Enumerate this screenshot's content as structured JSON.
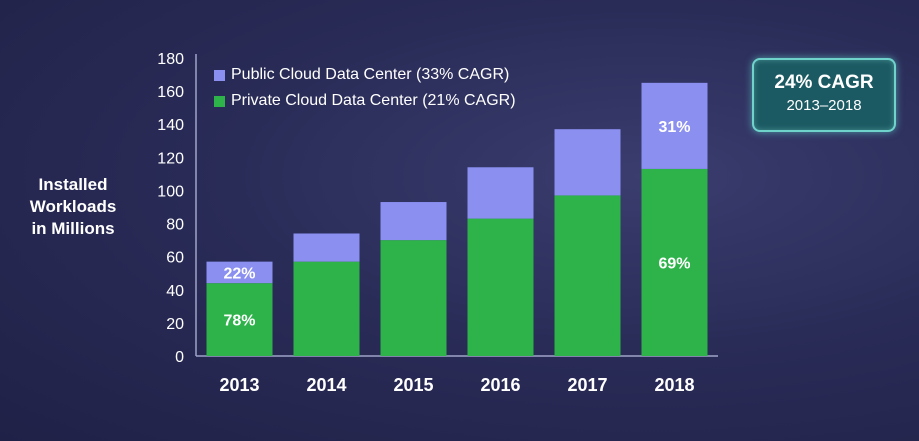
{
  "chart_data": {
    "type": "bar",
    "stacked": true,
    "categories": [
      "2013",
      "2014",
      "2015",
      "2016",
      "2017",
      "2018"
    ],
    "series": [
      {
        "name": "Private Cloud Data Center (21% CAGR)",
        "color": "#2db34a",
        "values": [
          44,
          57,
          70,
          83,
          97,
          113
        ]
      },
      {
        "name": "Public Cloud Data Center (33% CAGR)",
        "color": "#8a8ff0",
        "values": [
          13,
          17,
          23,
          31,
          40,
          52
        ]
      }
    ],
    "ylabel": "Installed Workloads in Millions",
    "ylim": [
      0,
      180
    ],
    "yticks": [
      "0",
      "20",
      "40",
      "60",
      "80",
      "100",
      "120",
      "140",
      "160",
      "180"
    ],
    "annotations": [
      {
        "category": "2013",
        "series": "private",
        "text": "78%"
      },
      {
        "category": "2013",
        "series": "public",
        "text": "22%"
      },
      {
        "category": "2018",
        "series": "private",
        "text": "69%"
      },
      {
        "category": "2018",
        "series": "public",
        "text": "31%"
      }
    ]
  },
  "ylabel_lines": [
    "Installed",
    "Workloads",
    "in Millions"
  ],
  "legend": {
    "public": "Public Cloud Data Center (33% CAGR)",
    "private": "Private Cloud Data Center (21% CAGR)"
  },
  "cagr_box": {
    "title": "24% CAGR",
    "subtitle": "2013–2018"
  }
}
